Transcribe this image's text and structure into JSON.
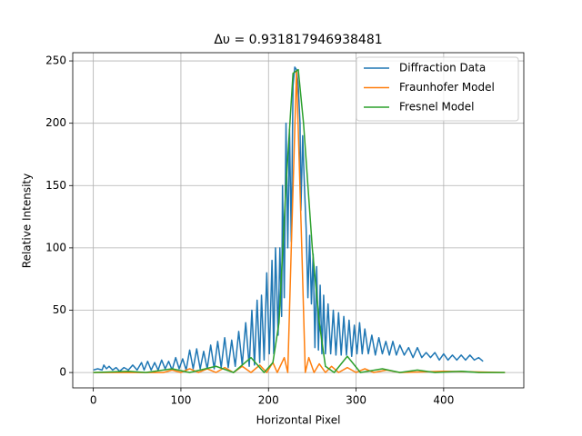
{
  "chart_data": {
    "type": "line",
    "title": "Δυ = 0.931817946938481",
    "x_label": "Horizontal Pixel",
    "y_label": "Relative Intensity",
    "xlim": [
      -23.5,
      491.5
    ],
    "ylim": [
      -12.3,
      256.6
    ],
    "xticks": [
      0,
      100,
      200,
      300,
      400
    ],
    "yticks": [
      0,
      50,
      100,
      150,
      200,
      250
    ],
    "grid": true,
    "legend": "upper right",
    "series": [
      {
        "name": "Diffraction Data",
        "color": "#1f77b4",
        "x": [
          0,
          5,
          10,
          12,
          15,
          18,
          22,
          26,
          30,
          35,
          40,
          45,
          50,
          55,
          58,
          62,
          66,
          70,
          74,
          78,
          82,
          86,
          90,
          94,
          98,
          102,
          106,
          110,
          114,
          118,
          122,
          126,
          130,
          134,
          138,
          142,
          146,
          150,
          154,
          158,
          162,
          166,
          170,
          174,
          178,
          181,
          184,
          187,
          190,
          192,
          195,
          198,
          201,
          204,
          206,
          208,
          211,
          213,
          215,
          216,
          218,
          220,
          222,
          224,
          226,
          228,
          230,
          232,
          234,
          236,
          237,
          239,
          241,
          243,
          245,
          247,
          249,
          251,
          253,
          255,
          257,
          259,
          261,
          263,
          265,
          268,
          271,
          274,
          277,
          280,
          283,
          286,
          289,
          292,
          295,
          298,
          301,
          304,
          307,
          310,
          314,
          318,
          322,
          326,
          330,
          334,
          338,
          342,
          346,
          350,
          355,
          360,
          365,
          370,
          375,
          380,
          385,
          390,
          395,
          400,
          405,
          410,
          415,
          420,
          425,
          430,
          435,
          440,
          445
        ],
        "values": [
          2,
          3,
          2,
          6,
          3,
          5,
          2,
          4,
          1,
          4,
          2,
          6,
          2,
          8,
          2,
          9,
          2,
          8,
          2,
          10,
          3,
          9,
          2,
          12,
          3,
          11,
          2,
          18,
          3,
          19,
          3,
          17,
          3,
          22,
          3,
          25,
          4,
          28,
          4,
          26,
          5,
          33,
          6,
          40,
          5,
          50,
          6,
          58,
          8,
          62,
          10,
          80,
          15,
          90,
          15,
          100,
          30,
          100,
          45,
          150,
          60,
          200,
          100,
          195,
          105,
          230,
          245,
          243,
          230,
          200,
          130,
          190,
          150,
          115,
          60,
          110,
          55,
          95,
          20,
          85,
          18,
          70,
          15,
          62,
          15,
          55,
          15,
          50,
          14,
          48,
          14,
          45,
          14,
          42,
          13,
          38,
          15,
          40,
          15,
          35,
          15,
          30,
          14,
          28,
          15,
          25,
          14,
          25,
          14,
          22,
          14,
          20,
          12,
          20,
          12,
          16,
          12,
          16,
          10,
          15,
          10,
          14,
          10,
          14,
          10,
          14,
          10,
          12,
          9
        ]
      },
      {
        "name": "Fraunhofer Model",
        "color": "#ff7f0e",
        "x": [
          0,
          80,
          90,
          100,
          110,
          120,
          130,
          140,
          150,
          160,
          170,
          180,
          190,
          198,
          205,
          210,
          218,
          222,
          226,
          232,
          238,
          242,
          246,
          252,
          258,
          265,
          272,
          280,
          290,
          300,
          310,
          320,
          335,
          350,
          400,
          470
        ],
        "values": [
          0,
          0,
          2,
          0,
          3,
          0,
          3,
          0,
          4,
          0,
          5,
          0,
          6,
          0,
          8,
          0,
          12,
          0,
          100,
          242,
          100,
          0,
          12,
          0,
          7,
          0,
          5,
          0,
          4,
          0,
          3,
          0,
          2,
          0,
          1,
          0
        ]
      },
      {
        "name": "Fresnel Model",
        "color": "#2ca02c",
        "x": [
          0,
          40,
          60,
          90,
          110,
          140,
          160,
          180,
          195,
          205,
          212,
          220,
          228,
          234,
          240,
          250,
          258,
          265,
          275,
          290,
          305,
          330,
          350,
          370,
          390,
          420,
          440,
          470
        ],
        "values": [
          0,
          1,
          0,
          3,
          0,
          5,
          0,
          12,
          0,
          8,
          40,
          150,
          240,
          243,
          200,
          100,
          40,
          5,
          0,
          13,
          0,
          3,
          0,
          2,
          0,
          1,
          0,
          0
        ]
      }
    ]
  }
}
